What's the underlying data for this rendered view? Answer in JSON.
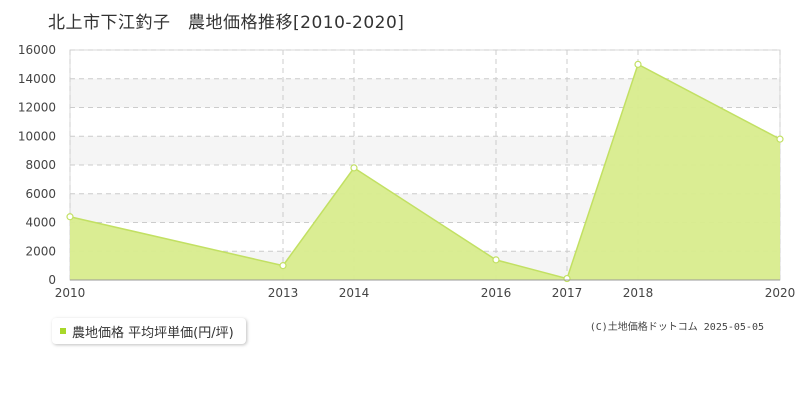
{
  "chart_data": {
    "type": "area",
    "title": "北上市下江釣子　農地価格推移[2010-2020]",
    "x": [
      2010,
      2013,
      2014,
      2016,
      2017,
      2018,
      2020
    ],
    "x_tick_labels": [
      "2010",
      "2013",
      "2014",
      "2016",
      "2017",
      "2018",
      "2020"
    ],
    "series": [
      {
        "name": "農地価格 平均坪単価(円/坪)",
        "values": [
          4400,
          1000,
          7800,
          1400,
          100,
          15000,
          9800
        ]
      }
    ],
    "ylim": [
      0,
      16000
    ],
    "y_ticks": [
      0,
      2000,
      4000,
      6000,
      8000,
      10000,
      12000,
      14000,
      16000
    ],
    "grid": true,
    "legend_position": "bottom-left",
    "colors": {
      "fill": "#d8ec8d",
      "line": "#c2e063",
      "marker_fill": "#ffffff",
      "legend_swatch": "#a8d82a",
      "grid": "#cccccc",
      "band": "#f5f5f5"
    }
  },
  "legend": {
    "label": "農地価格 平均坪単価(円/坪)"
  },
  "copyright": "(C)土地価格ドットコム 2025-05-05"
}
